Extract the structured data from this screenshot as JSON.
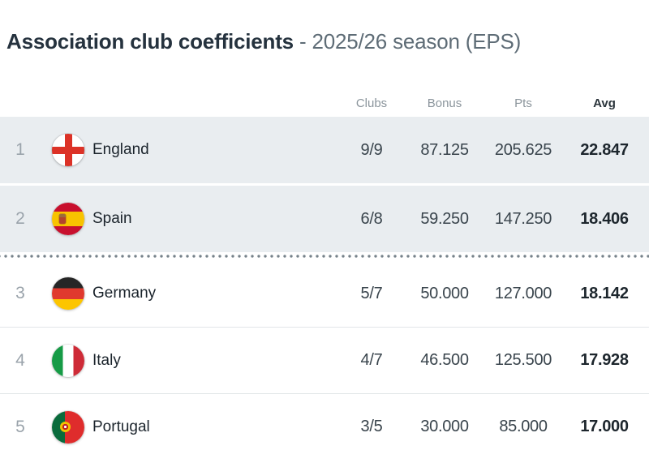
{
  "title": {
    "main": "Association club coefficients",
    "sub": "- 2025/26 season (EPS)"
  },
  "table": {
    "headers": {
      "clubs": "Clubs",
      "bonus": "Bonus",
      "pts": "Pts",
      "avg": "Avg"
    },
    "rows": [
      {
        "rank": "1",
        "country": "England",
        "flag_icon": "flag-england-icon",
        "clubs": "9/9",
        "bonus": "87.125",
        "pts": "205.625",
        "avg": "22.847",
        "highlighted": true
      },
      {
        "rank": "2",
        "country": "Spain",
        "flag_icon": "flag-spain-icon",
        "clubs": "6/8",
        "bonus": "59.250",
        "pts": "147.250",
        "avg": "18.406",
        "highlighted": true
      },
      {
        "rank": "3",
        "country": "Germany",
        "flag_icon": "flag-germany-icon",
        "clubs": "5/7",
        "bonus": "50.000",
        "pts": "127.000",
        "avg": "18.142",
        "highlighted": false
      },
      {
        "rank": "4",
        "country": "Italy",
        "flag_icon": "flag-italy-icon",
        "clubs": "4/7",
        "bonus": "46.500",
        "pts": "125.500",
        "avg": "17.928",
        "highlighted": false
      },
      {
        "rank": "5",
        "country": "Portugal",
        "flag_icon": "flag-portugal-icon",
        "clubs": "3/5",
        "bonus": "30.000",
        "pts": "85.000",
        "avg": "17.000",
        "highlighted": false
      }
    ],
    "qualification_cutoff_after_rank": 2
  },
  "colors": {
    "title_text": "#25323e",
    "title_sub_text": "#5e6c76",
    "header_muted": "#8b959c",
    "header_avg": "#2a343b",
    "highlight_row_bg": "#e9edf0",
    "rank_text": "#9aa3ab",
    "country_text": "#1b242c",
    "value_text": "#39444c",
    "avg_value_text": "#1d262d",
    "row_separator": "#e2e6e8",
    "cutoff_dot": "#76828a",
    "flag_england_cross": "#dc3227",
    "flag_spain_red": "#c8102e",
    "flag_spain_yellow": "#f8c300",
    "flag_germany_black": "#262626",
    "flag_germany_red": "#e0392e",
    "flag_germany_gold": "#fcc500",
    "flag_italy_green": "#169b46",
    "flag_italy_red": "#ce2b37",
    "flag_portugal_green": "#0a6b3c",
    "flag_portugal_red": "#df2c2c"
  }
}
